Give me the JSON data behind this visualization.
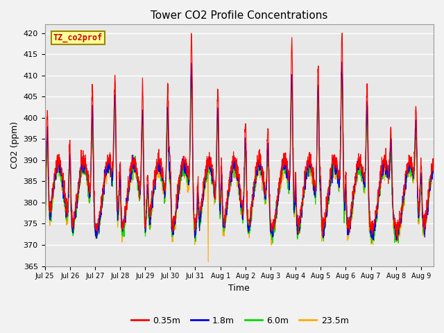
{
  "title": "Tower CO2 Profile Concentrations",
  "xlabel": "Time",
  "ylabel": "CO2 (ppm)",
  "ylim": [
    365,
    422
  ],
  "yticks": [
    365,
    370,
    375,
    380,
    385,
    390,
    395,
    400,
    405,
    410,
    415,
    420
  ],
  "legend_label": "TZ_co2prof",
  "series_labels": [
    "0.35m",
    "1.8m",
    "6.0m",
    "23.5m"
  ],
  "series_colors": [
    "#ff0000",
    "#0000ee",
    "#00dd00",
    "#ffaa00"
  ],
  "fig_facecolor": "#f2f2f2",
  "plot_bg_color": "#e8e8e8",
  "n_days": 15.5,
  "n_points": 2232,
  "seed": 42
}
